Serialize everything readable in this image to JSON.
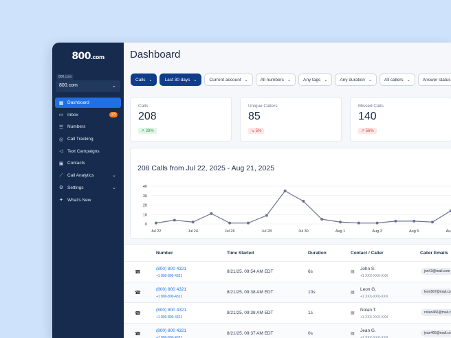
{
  "sidebar": {
    "logo": "800",
    "logo_suffix": ".com",
    "account_tag": "800.com",
    "account_value": "800.com",
    "items": [
      {
        "label": "Dashboard",
        "icon": "grid-icon"
      },
      {
        "label": "Inbox",
        "icon": "inbox-icon",
        "badge": "23"
      },
      {
        "label": "Numbers",
        "icon": "list-icon"
      },
      {
        "label": "Call Tracking",
        "icon": "target-icon"
      },
      {
        "label": "Text Campaigns",
        "icon": "megaphone-icon"
      },
      {
        "label": "Contacts",
        "icon": "contacts-icon"
      },
      {
        "label": "Call Analytics",
        "icon": "chart-icon"
      },
      {
        "label": "Settings",
        "icon": "gear-icon"
      },
      {
        "label": "What's New",
        "icon": "sparkle-icon"
      }
    ]
  },
  "header": {
    "title": "Dashboard"
  },
  "filters": [
    "Calls",
    "Last 30 days",
    "Current account",
    "All numbers",
    "Any tags",
    "Any duration",
    "All callers",
    "Answer status"
  ],
  "stats": [
    {
      "label": "Calls",
      "value": "208",
      "delta": "28%",
      "dir": "up"
    },
    {
      "label": "Unique Callers",
      "value": "85",
      "delta": "5%",
      "dir": "down"
    },
    {
      "label": "Missed Calls",
      "value": "140",
      "delta": "56%",
      "dir": "up"
    }
  ],
  "chart_data": {
    "type": "line",
    "title": "208 Calls from Jul 22, 2025 - Aug 21, 2025",
    "x": [
      "Jul 22",
      "Jul 23",
      "Jul 24",
      "Jul 25",
      "Jul 26",
      "Jul 27",
      "Jul 28",
      "Jul 29",
      "Jul 30",
      "Jul 31",
      "Aug 1",
      "Aug 2",
      "Aug 3",
      "Aug 4",
      "Aug 5",
      "Aug 6",
      "Aug 7",
      "Aug 8"
    ],
    "values": [
      1,
      4,
      2,
      11,
      1,
      1,
      9,
      35,
      24,
      5,
      2,
      1,
      1,
      3,
      3,
      2,
      14,
      0
    ],
    "xtick_labels": [
      "Jul 22",
      "Jul 24",
      "Jul 26",
      "Jul 28",
      "Jul 30",
      "Aug 1",
      "Aug 3",
      "Aug 5",
      "Aug 7"
    ],
    "yticks": [
      "0",
      "10",
      "20",
      "30",
      "40"
    ],
    "ylim": [
      0,
      40
    ],
    "color": "#6b7291",
    "grid": true
  },
  "table": {
    "columns": [
      "Number",
      "Time Started",
      "Duration",
      "Contact / Caller",
      "Caller Emails"
    ],
    "rows": [
      {
        "number": "(800) 800 4321",
        "sub": "+1 800-800-4321",
        "time": "8/21/25, 09:54 AM EDT",
        "duration": "6s",
        "contact": "John S.",
        "contact_sub": "+1 XXX-XXX-XXX",
        "email": "jon43@mail.com"
      },
      {
        "number": "(800) 800 4321",
        "sub": "+1 800-800-4321",
        "time": "8/21/25, 09:38 AM EDT",
        "duration": "10s",
        "contact": "Leon G.",
        "contact_sub": "+1 XXX-XXX-XXX",
        "email": "leon567@mail.com"
      },
      {
        "number": "(800) 800 4321",
        "sub": "+1 800-800-4321",
        "time": "8/21/25, 09:38 AM EDT",
        "duration": "1s",
        "contact": "Nolan T.",
        "contact_sub": "+1 XXX-XXX-XXX",
        "email": "nolan466@mail.com"
      },
      {
        "number": "(800) 800 4321",
        "sub": "+1 800-800-4321",
        "time": "8/21/25, 09:37 AM EDT",
        "duration": "0s",
        "contact": "Jean G.",
        "contact_sub": "+1 XXX-XXX-XXX",
        "email": "jean466@mail.com"
      }
    ]
  }
}
